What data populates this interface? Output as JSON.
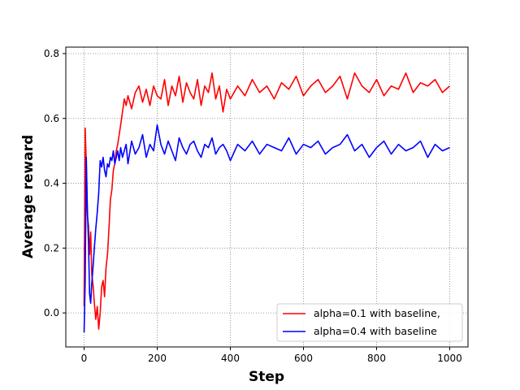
{
  "chart_data": {
    "type": "line",
    "title": "",
    "xlabel": "Step",
    "ylabel": "Average reward",
    "xlim": [
      -50,
      1050
    ],
    "ylim": [
      -0.105,
      0.82
    ],
    "xticks": [
      0,
      200,
      400,
      600,
      800,
      1000
    ],
    "yticks": [
      0.0,
      0.2,
      0.4,
      0.6,
      0.8
    ],
    "xtick_labels": [
      "0",
      "200",
      "400",
      "600",
      "800",
      "1000"
    ],
    "ytick_labels": [
      "0.0",
      "0.2",
      "0.4",
      "0.6",
      "0.8"
    ],
    "grid": true,
    "grid_style": "dotted",
    "legend_position": "lower-right",
    "series": [
      {
        "name": "alpha=0.1 with baseline,",
        "color": "#ff0000",
        "x": [
          0,
          3,
          6,
          9,
          12,
          15,
          18,
          21,
          25,
          28,
          32,
          36,
          40,
          44,
          48,
          52,
          56,
          60,
          64,
          68,
          72,
          76,
          80,
          84,
          88,
          92,
          96,
          100,
          105,
          110,
          115,
          120,
          130,
          140,
          150,
          160,
          170,
          180,
          190,
          200,
          210,
          220,
          230,
          240,
          250,
          260,
          270,
          280,
          290,
          300,
          310,
          320,
          330,
          340,
          350,
          360,
          370,
          380,
          390,
          400,
          420,
          440,
          460,
          480,
          500,
          520,
          540,
          560,
          580,
          600,
          620,
          640,
          660,
          680,
          700,
          720,
          740,
          760,
          780,
          800,
          820,
          840,
          860,
          880,
          900,
          920,
          940,
          960,
          980,
          1000
        ],
        "y": [
          0.02,
          0.57,
          0.46,
          0.3,
          0.27,
          0.18,
          0.25,
          0.12,
          0.08,
          0.03,
          -0.02,
          0.02,
          -0.05,
          0.0,
          0.08,
          0.1,
          0.05,
          0.14,
          0.18,
          0.26,
          0.35,
          0.38,
          0.44,
          0.46,
          0.5,
          0.52,
          0.55,
          0.58,
          0.62,
          0.66,
          0.64,
          0.67,
          0.63,
          0.68,
          0.7,
          0.65,
          0.69,
          0.64,
          0.7,
          0.67,
          0.66,
          0.72,
          0.64,
          0.7,
          0.67,
          0.73,
          0.65,
          0.71,
          0.68,
          0.66,
          0.72,
          0.64,
          0.7,
          0.68,
          0.74,
          0.66,
          0.7,
          0.62,
          0.69,
          0.66,
          0.7,
          0.67,
          0.72,
          0.68,
          0.7,
          0.66,
          0.71,
          0.69,
          0.73,
          0.67,
          0.7,
          0.72,
          0.68,
          0.7,
          0.73,
          0.66,
          0.74,
          0.7,
          0.68,
          0.72,
          0.67,
          0.7,
          0.69,
          0.74,
          0.68,
          0.71,
          0.7,
          0.72,
          0.68,
          0.7
        ]
      },
      {
        "name": "alpha=0.4 with baseline",
        "color": "#0000ff",
        "x": [
          0,
          3,
          6,
          9,
          12,
          15,
          18,
          21,
          25,
          28,
          32,
          36,
          40,
          44,
          48,
          52,
          56,
          60,
          64,
          68,
          72,
          76,
          80,
          84,
          88,
          92,
          96,
          100,
          105,
          110,
          115,
          120,
          130,
          140,
          150,
          160,
          170,
          180,
          190,
          200,
          210,
          220,
          230,
          240,
          250,
          260,
          270,
          280,
          290,
          300,
          310,
          320,
          330,
          340,
          350,
          360,
          370,
          380,
          390,
          400,
          420,
          440,
          460,
          480,
          500,
          520,
          540,
          560,
          580,
          600,
          620,
          640,
          660,
          680,
          700,
          720,
          740,
          760,
          780,
          800,
          820,
          840,
          860,
          880,
          900,
          920,
          940,
          960,
          980,
          1000
        ],
        "y": [
          -0.06,
          0.1,
          0.48,
          0.32,
          0.22,
          0.06,
          0.03,
          0.09,
          0.15,
          0.2,
          0.26,
          0.31,
          0.37,
          0.47,
          0.45,
          0.48,
          0.44,
          0.42,
          0.46,
          0.45,
          0.48,
          0.47,
          0.5,
          0.46,
          0.48,
          0.5,
          0.47,
          0.51,
          0.48,
          0.5,
          0.52,
          0.46,
          0.53,
          0.49,
          0.51,
          0.55,
          0.48,
          0.52,
          0.5,
          0.58,
          0.52,
          0.49,
          0.53,
          0.5,
          0.47,
          0.54,
          0.51,
          0.49,
          0.52,
          0.53,
          0.5,
          0.48,
          0.52,
          0.51,
          0.54,
          0.49,
          0.51,
          0.52,
          0.5,
          0.47,
          0.52,
          0.5,
          0.53,
          0.49,
          0.52,
          0.51,
          0.5,
          0.54,
          0.49,
          0.52,
          0.51,
          0.53,
          0.49,
          0.51,
          0.52,
          0.55,
          0.5,
          0.52,
          0.48,
          0.51,
          0.53,
          0.49,
          0.52,
          0.5,
          0.51,
          0.53,
          0.48,
          0.52,
          0.5,
          0.51
        ]
      }
    ]
  }
}
